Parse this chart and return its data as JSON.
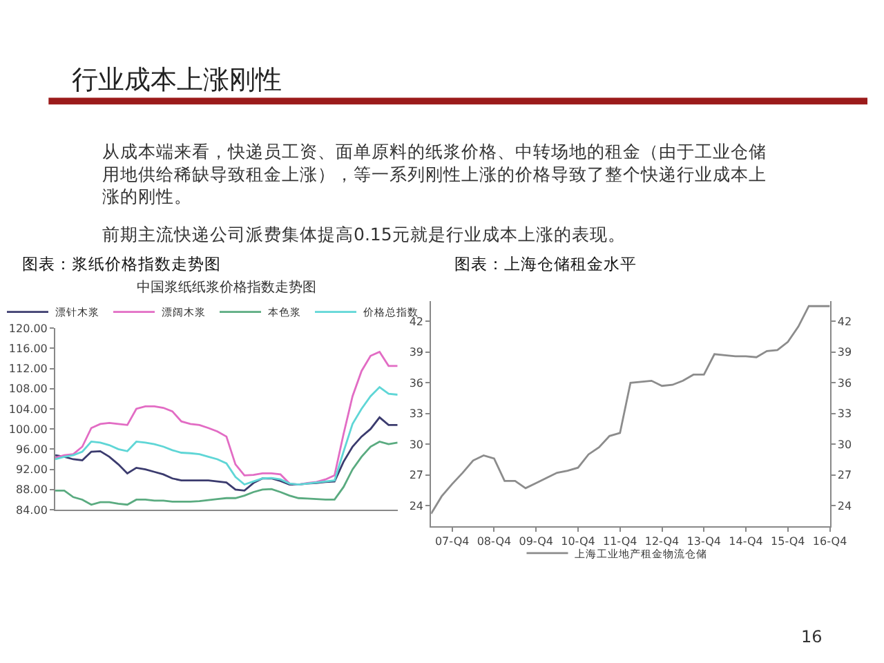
{
  "chart_data": [
    {
      "type": "line",
      "title": "中国浆纸纸浆价格指数走势图",
      "annotations": [
        "行业成本上涨刚性",
        "从成本端来看，快递员工资、面单原料的纸浆价格、中转场地的租金（由于工业仓储用地供给稀缺导致租金上涨），等一系列刚性上涨的价格导致了整个快递行业成本上涨的刚性。",
        "前期主流快递公司派费集体提高0.15元就是行业成本上涨的表现。",
        "图表：浆纸价格指数走势图"
      ],
      "categories": [
        null,
        null,
        null,
        null,
        null,
        null,
        null,
        null,
        null,
        null,
        null,
        null,
        null,
        null,
        null,
        null,
        null,
        null,
        null,
        null,
        null,
        null,
        null,
        null,
        null,
        null,
        null,
        null,
        null,
        null,
        null,
        null,
        null,
        null,
        null,
        null,
        null,
        null,
        null
      ],
      "series": [
        {
          "name": "漂针木浆",
          "color": "#3b3b6e",
          "values": [
            94.8,
            94.5,
            94.0,
            93.8,
            95.5,
            95.6,
            94.5,
            93.0,
            91.2,
            92.3,
            92.0,
            91.5,
            91.0,
            90.2,
            89.8,
            89.8,
            89.8,
            89.8,
            89.6,
            89.4,
            88.0,
            87.8,
            89.3,
            90.2,
            90.2,
            89.7,
            89.0,
            89.0,
            89.2,
            89.3,
            89.5,
            89.6,
            93.5,
            96.5,
            98.5,
            100.0,
            102.3,
            100.8,
            100.8
          ]
        },
        {
          "name": "漂阔木浆",
          "color": "#e26cc4",
          "values": [
            94.3,
            94.8,
            95.0,
            96.5,
            100.2,
            101.0,
            101.2,
            101.0,
            100.8,
            104.0,
            104.5,
            104.5,
            104.2,
            103.5,
            101.5,
            101.0,
            100.8,
            100.2,
            99.5,
            98.5,
            93.0,
            90.8,
            90.9,
            91.2,
            91.2,
            91.0,
            89.2,
            89.0,
            89.3,
            89.5,
            90.0,
            90.8,
            99.0,
            106.5,
            111.5,
            114.5,
            115.3,
            112.5,
            112.5
          ]
        },
        {
          "name": "本色浆",
          "color": "#5aab80",
          "values": [
            87.8,
            87.8,
            86.5,
            86.0,
            85.0,
            85.5,
            85.5,
            85.2,
            85.0,
            86.0,
            86.0,
            85.8,
            85.8,
            85.6,
            85.6,
            85.6,
            85.7,
            85.9,
            86.1,
            86.3,
            86.3,
            86.8,
            87.5,
            88.0,
            88.1,
            87.5,
            86.8,
            86.3,
            86.2,
            86.1,
            86.0,
            86.0,
            88.5,
            92.0,
            94.5,
            96.5,
            97.5,
            97.0,
            97.3
          ]
        },
        {
          "name": "价格总指数",
          "color": "#5fd6d6",
          "values": [
            94.0,
            94.5,
            94.8,
            95.5,
            97.5,
            97.3,
            96.8,
            96.0,
            95.6,
            97.5,
            97.3,
            97.0,
            96.5,
            95.8,
            95.3,
            95.2,
            95.0,
            94.5,
            94.0,
            93.2,
            90.5,
            89.0,
            89.6,
            90.2,
            90.3,
            90.0,
            89.2,
            89.0,
            89.2,
            89.4,
            89.6,
            89.8,
            95.5,
            101.0,
            104.0,
            106.5,
            108.3,
            107.0,
            106.8
          ]
        }
      ],
      "ylim": [
        84,
        120
      ],
      "yticks": [
        {
          "value": 84,
          "label": "84.00"
        },
        {
          "value": 88,
          "label": "88.00"
        },
        {
          "value": 92,
          "label": "92.00"
        },
        {
          "value": 96,
          "label": "96.00"
        },
        {
          "value": 100,
          "label": "100.00"
        },
        {
          "value": 104,
          "label": "104.00"
        },
        {
          "value": 108,
          "label": "108.00"
        },
        {
          "value": 112,
          "label": "112.00"
        },
        {
          "value": 116,
          "label": "116.00"
        },
        {
          "value": 120,
          "label": "120.00"
        }
      ],
      "tick_labels": "y",
      "legend": "top",
      "grid": false,
      "marker": "none",
      "line_style": "solid"
    },
    {
      "type": "line",
      "annotations": [
        "图表：上海仓储租金水平",
        "16"
      ],
      "categories": [
        null,
        null,
        "07-Q4",
        null,
        null,
        null,
        "08-Q4",
        null,
        null,
        null,
        "09-Q4",
        null,
        null,
        null,
        "10-Q4",
        null,
        null,
        null,
        "11-Q4",
        null,
        null,
        null,
        "12-Q4",
        null,
        null,
        null,
        "13-Q4",
        null,
        null,
        null,
        "14-Q4",
        null,
        null,
        null,
        "15-Q4",
        null,
        null,
        null,
        "16-Q4"
      ],
      "series": [
        {
          "name": "上海工业地产租金物流仓储",
          "color": "#8c8c8c",
          "values": [
            23.2,
            24.9,
            26.1,
            27.2,
            28.4,
            28.9,
            28.6,
            26.4,
            26.4,
            25.7,
            26.2,
            26.7,
            27.2,
            27.4,
            27.7,
            29.0,
            29.7,
            30.8,
            31.1,
            36.0,
            36.1,
            36.2,
            35.7,
            35.8,
            36.2,
            36.8,
            36.8,
            38.8,
            38.7,
            38.6,
            38.6,
            38.5,
            39.1,
            39.2,
            40.0,
            41.5,
            43.5,
            43.5,
            43.5
          ]
        }
      ],
      "ylim": [
        22,
        44
      ],
      "yticks": [
        24,
        27,
        30,
        33,
        36,
        39,
        42
      ],
      "y2lim": [
        22,
        44
      ],
      "y2ticks": [
        24,
        27,
        30,
        33,
        36,
        39,
        42
      ],
      "legend": "bottom",
      "grid": false,
      "marker": "none",
      "line_style": "solid"
    }
  ]
}
